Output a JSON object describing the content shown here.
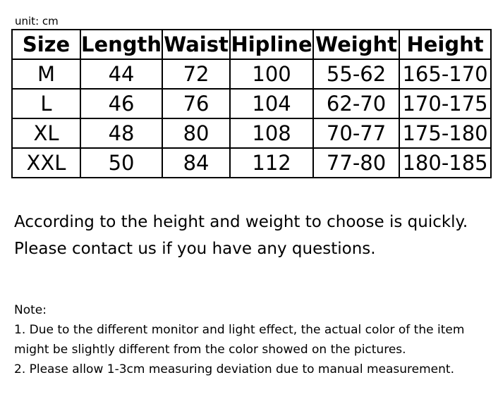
{
  "unit_label": "unit: cm",
  "table": {
    "headers": [
      "Size",
      "Length",
      "Waist",
      "Hipline",
      "Weight",
      "Height"
    ],
    "rows": [
      [
        "M",
        "44",
        "72",
        "100",
        "55-62",
        "165-170"
      ],
      [
        "L",
        "46",
        "76",
        "104",
        "62-70",
        "170-175"
      ],
      [
        "XL",
        "48",
        "80",
        "108",
        "70-77",
        "175-180"
      ],
      [
        "XXL",
        "50",
        "84",
        "112",
        "77-80",
        "180-185"
      ]
    ]
  },
  "description": [
    "According to the height and weight to choose is quickly.",
    "Please contact us if you have any questions."
  ],
  "note": {
    "title": "Note:",
    "lines": [
      "1. Due to the different monitor and light effect, the actual color of the item",
      "might be slightly different from the color showed on the pictures.",
      "2. Please allow 1-3cm measuring deviation due to manual measurement."
    ]
  }
}
